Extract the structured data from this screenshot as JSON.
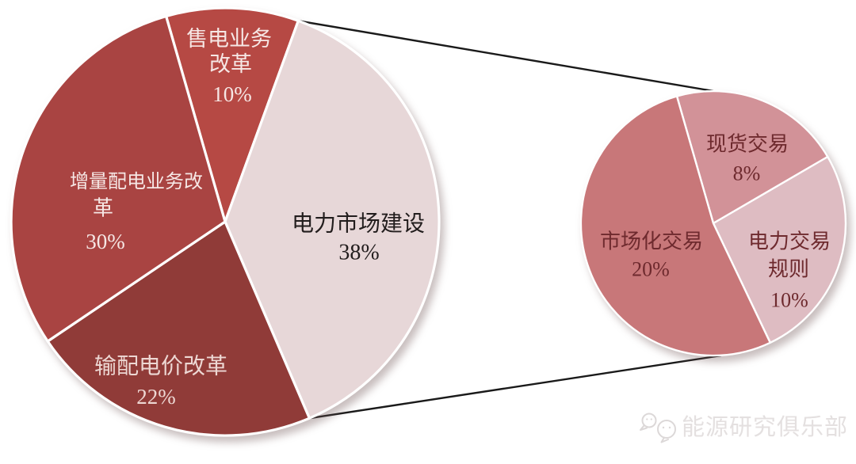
{
  "background": "#FFFFFF",
  "chart_data": [
    {
      "type": "pie",
      "role": "main-pie",
      "title": "",
      "unit": "%",
      "start_angle_deg": -16,
      "slices": [
        {
          "id": "shoudian-yewu-gaige",
          "label": "售电业务改革",
          "label_lines": [
            "售电业务",
            "改革"
          ],
          "value": 10,
          "pct_label": "10%",
          "color": "#B64944",
          "text_color": "#F6E7E5"
        },
        {
          "id": "dianli-shichang-jianshe",
          "label": "电力市场建设",
          "label_lines": [
            "电力市场建设"
          ],
          "value": 38,
          "pct_label": "38%",
          "color": "#E7D7D8",
          "text_color": "#221D1D"
        },
        {
          "id": "shupei-dianjia-gaige",
          "label": "输配电价改革",
          "label_lines": [
            "输配电价改革"
          ],
          "value": 22,
          "pct_label": "22%",
          "color": "#903B38",
          "text_color": "#EDD7D3"
        },
        {
          "id": "zengliang-peidian-yewu-gaige",
          "label": "增量配电业务改革",
          "label_lines": [
            "增量配电业务改",
            "革"
          ],
          "value": 30,
          "pct_label": "30%",
          "color": "#A94442",
          "text_color": "#F6E7E5"
        }
      ]
    },
    {
      "type": "pie",
      "role": "secondary-pie",
      "parent_slice": "电力市场建设",
      "unit": "%",
      "start_angle_deg": -16,
      "slices": [
        {
          "id": "xianhuo-jiaoyi",
          "label": "现货交易",
          "label_lines": [
            "现货交易"
          ],
          "value": 8,
          "pct_label": "8%",
          "color": "#D29298",
          "text_color": "#6E2A2E"
        },
        {
          "id": "dianli-jiaoyi-guize",
          "label": "电力交易规则",
          "label_lines": [
            "电力交易",
            "规则"
          ],
          "value": 10,
          "pct_label": "10%",
          "color": "#DEBCC2",
          "text_color": "#6E2A2E"
        },
        {
          "id": "shichanghua-jiaoyi",
          "label": "市场化交易",
          "label_lines": [
            "市场化交易"
          ],
          "value": 20,
          "pct_label": "20%",
          "color": "#C87779",
          "text_color": "#6E2A2E"
        }
      ]
    }
  ],
  "connectors": {
    "color": "#1A1A1A",
    "width": 2.4
  },
  "separators": {
    "color": "#FFFFFF"
  },
  "watermark": {
    "text": "能源研究俱乐部",
    "icon": "wechat-chat-bubbles-icon",
    "color": "#E4E0E0",
    "icon_color": "#DCD8D8"
  }
}
